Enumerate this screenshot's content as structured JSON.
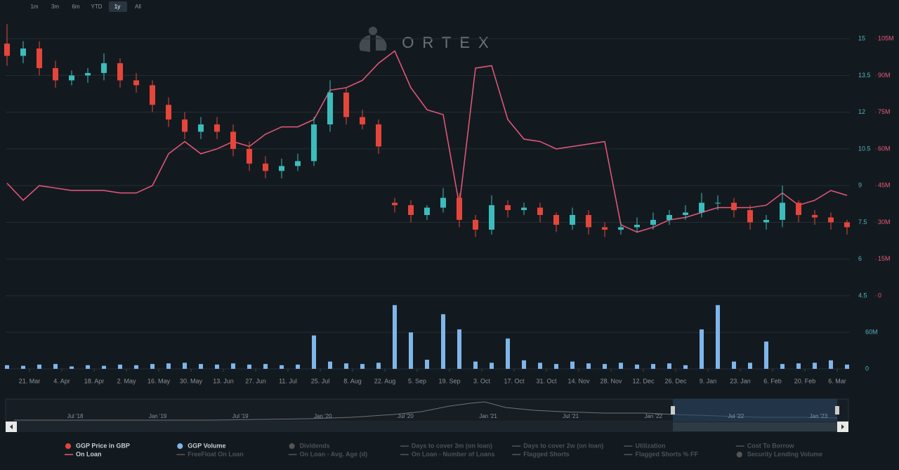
{
  "chart_data": {
    "type": "candlestick",
    "watermark": "ORTEX",
    "range_buttons": [
      "1m",
      "3m",
      "6m",
      "YTD",
      "1y",
      "All"
    ],
    "selected_range": "1y",
    "open": [
      14.8,
      14.3,
      14.6,
      13.8,
      13.3,
      13.5,
      13.6,
      14.0,
      13.3,
      13.1,
      12.3,
      11.7,
      11.2,
      11.5,
      11.2,
      10.5,
      9.9,
      9.6,
      9.8,
      10.0,
      11.5,
      12.8,
      11.8,
      11.5,
      8.3,
      8.2,
      7.8,
      8.1,
      8.5,
      7.6,
      7.2,
      8.2,
      8.0,
      8.1,
      7.8,
      7.4,
      7.8,
      7.3,
      7.2,
      7.3,
      7.4,
      7.6,
      7.8,
      7.9,
      8.3,
      8.3,
      8.0,
      7.5,
      7.6,
      8.3,
      7.8,
      7.7,
      7.5
    ],
    "high": [
      15.6,
      14.9,
      14.9,
      14.1,
      13.7,
      13.8,
      14.4,
      14.2,
      13.6,
      13.3,
      12.6,
      12.0,
      11.8,
      11.8,
      11.5,
      10.8,
      10.2,
      10.1,
      10.3,
      11.8,
      13.3,
      13.0,
      12.1,
      11.7,
      8.5,
      8.4,
      8.2,
      8.9,
      8.7,
      7.8,
      8.6,
      8.4,
      8.3,
      8.3,
      7.9,
      8.1,
      8.0,
      7.5,
      7.5,
      7.7,
      7.9,
      8.0,
      8.2,
      8.7,
      8.6,
      8.5,
      8.2,
      7.8,
      9.0,
      8.4,
      8.0,
      7.9,
      7.6
    ],
    "low": [
      13.9,
      14.0,
      13.5,
      13.0,
      13.1,
      13.2,
      13.3,
      13.0,
      12.8,
      12.0,
      11.4,
      10.9,
      10.9,
      10.9,
      10.2,
      9.6,
      9.3,
      9.3,
      9.6,
      9.8,
      11.2,
      11.5,
      11.3,
      10.3,
      7.9,
      7.5,
      7.6,
      7.9,
      7.3,
      6.9,
      7.0,
      7.7,
      7.8,
      7.5,
      7.1,
      7.2,
      7.0,
      6.9,
      7.0,
      7.1,
      7.2,
      7.4,
      7.6,
      7.7,
      8.0,
      7.7,
      7.2,
      7.2,
      7.3,
      7.5,
      7.4,
      7.2,
      7.0
    ],
    "close": [
      14.3,
      14.6,
      13.8,
      13.3,
      13.5,
      13.6,
      14.0,
      13.3,
      13.1,
      12.3,
      11.7,
      11.2,
      11.5,
      11.2,
      10.5,
      9.9,
      9.6,
      9.8,
      10.0,
      11.5,
      12.8,
      11.8,
      11.5,
      10.6,
      8.2,
      7.8,
      8.1,
      8.5,
      7.6,
      7.2,
      8.2,
      8.0,
      8.1,
      7.8,
      7.4,
      7.8,
      7.3,
      7.2,
      7.3,
      7.4,
      7.6,
      7.8,
      7.9,
      8.3,
      8.3,
      8.0,
      7.5,
      7.6,
      8.3,
      7.8,
      7.7,
      7.5,
      7.3
    ],
    "color_up": "#3cbcbc",
    "color_down": "#e5453b",
    "on_loan": {
      "color": "#e8587a",
      "axis": "y2",
      "values": [
        46000000,
        39000000,
        45000000,
        44000000,
        43000000,
        43000000,
        43000000,
        42000000,
        42000000,
        45000000,
        58000000,
        63000000,
        58000000,
        60000000,
        63000000,
        61000000,
        66000000,
        69000000,
        69000000,
        72000000,
        84000000,
        85000000,
        88000000,
        95000000,
        100000000,
        85000000,
        76000000,
        74000000,
        37000000,
        93000000,
        94000000,
        72000000,
        64000000,
        63000000,
        60000000,
        61000000,
        62000000,
        63000000,
        29000000,
        26000000,
        28000000,
        31000000,
        32000000,
        34000000,
        36000000,
        36000000,
        36000000,
        37000000,
        42000000,
        37000000,
        39000000,
        43000000,
        41000000
      ]
    },
    "volume": {
      "color": "#7fb6ea",
      "values": [
        6000000,
        5000000,
        7000000,
        8000000,
        4000000,
        6000000,
        5000000,
        7000000,
        6000000,
        8000000,
        9000000,
        10000000,
        8000000,
        7000000,
        9000000,
        7000000,
        8000000,
        6000000,
        7000000,
        55000000,
        12000000,
        9000000,
        8000000,
        10000000,
        105000000,
        60000000,
        15000000,
        90000000,
        65000000,
        12000000,
        10000000,
        50000000,
        14000000,
        10000000,
        8000000,
        12000000,
        9000000,
        8000000,
        10000000,
        7000000,
        8000000,
        9000000,
        6000000,
        65000000,
        105000000,
        12000000,
        10000000,
        45000000,
        8000000,
        9000000,
        10000000,
        14000000,
        7000000
      ]
    },
    "ylim": [
      4.5,
      15.75
    ],
    "yticks": [
      4.5,
      6,
      7.5,
      9,
      10.5,
      12,
      13.5,
      15
    ],
    "y2lim": [
      0,
      112500000
    ],
    "y2ticks": [
      0,
      {
        "value": 15000000,
        "label": "15M"
      },
      {
        "value": 30000000,
        "label": "30M"
      },
      {
        "value": 45000000,
        "label": "45M"
      },
      {
        "value": 60000000,
        "label": "60M"
      },
      {
        "value": 75000000,
        "label": "75M"
      },
      {
        "value": 90000000,
        "label": "90M"
      },
      {
        "value": 105000000,
        "label": "105M"
      }
    ],
    "vlim": [
      0,
      110000000
    ],
    "vticks": [
      0,
      {
        "value": 60000000,
        "label": "60M"
      }
    ],
    "xticks": [
      "21. Mar",
      "4. Apr",
      "18. Apr",
      "2. May",
      "16. May",
      "30. May",
      "13. Jun",
      "27. Jun",
      "11. Jul",
      "25. Jul",
      "8. Aug",
      "22. Aug",
      "5. Sep",
      "19. Sep",
      "3. Oct",
      "17. Oct",
      "31. Oct",
      "14. Nov",
      "28. Nov",
      "12. Dec",
      "26. Dec",
      "9. Jan",
      "23. Jan",
      "6. Feb",
      "20. Feb",
      "6. Mar"
    ],
    "navigator_labels": [
      "Jul '18",
      "Jan '19",
      "Jul '19",
      "Jan '20",
      "Jul '20",
      "Jan '21",
      "Jul '21",
      "Jan '22",
      "Jul '22",
      "Jan '23"
    ],
    "legend": [
      [
        {
          "name": "GGP Price in GBP",
          "marker": "dot",
          "color": "#e5453b",
          "active": true
        },
        {
          "name": "GGP Volume",
          "marker": "dot",
          "color": "#7fb6ea",
          "active": true
        },
        {
          "name": "Dividends",
          "marker": "dot",
          "color": "#555",
          "active": false
        },
        {
          "name": "Days to cover 3m (on loan)",
          "marker": "line",
          "color": "#555",
          "active": false
        },
        {
          "name": "Days to cover 2w (on loan)",
          "marker": "line",
          "color": "#555",
          "active": false
        },
        {
          "name": "Utilization",
          "marker": "line",
          "color": "#555",
          "active": false
        },
        {
          "name": "Cost To Borrow",
          "marker": "line",
          "color": "#555",
          "active": false
        }
      ],
      [
        {
          "name": "On Loan",
          "marker": "line",
          "color": "#e8587a",
          "active": true
        },
        {
          "name": "FreeFloat On Loan",
          "marker": "line",
          "color": "#555",
          "active": false
        },
        {
          "name": "On Loan - Avg. Age (d)",
          "marker": "line",
          "color": "#555",
          "active": false
        },
        {
          "name": "On Loan - Number of Loans",
          "marker": "line",
          "color": "#555",
          "active": false
        },
        {
          "name": "Flagged Shorts",
          "marker": "line",
          "color": "#555",
          "active": false
        },
        {
          "name": "Flagged Shorts % FF",
          "marker": "line",
          "color": "#555",
          "active": false
        },
        {
          "name": "Security Lending Volume",
          "marker": "dot",
          "color": "#555",
          "active": false
        }
      ]
    ]
  }
}
